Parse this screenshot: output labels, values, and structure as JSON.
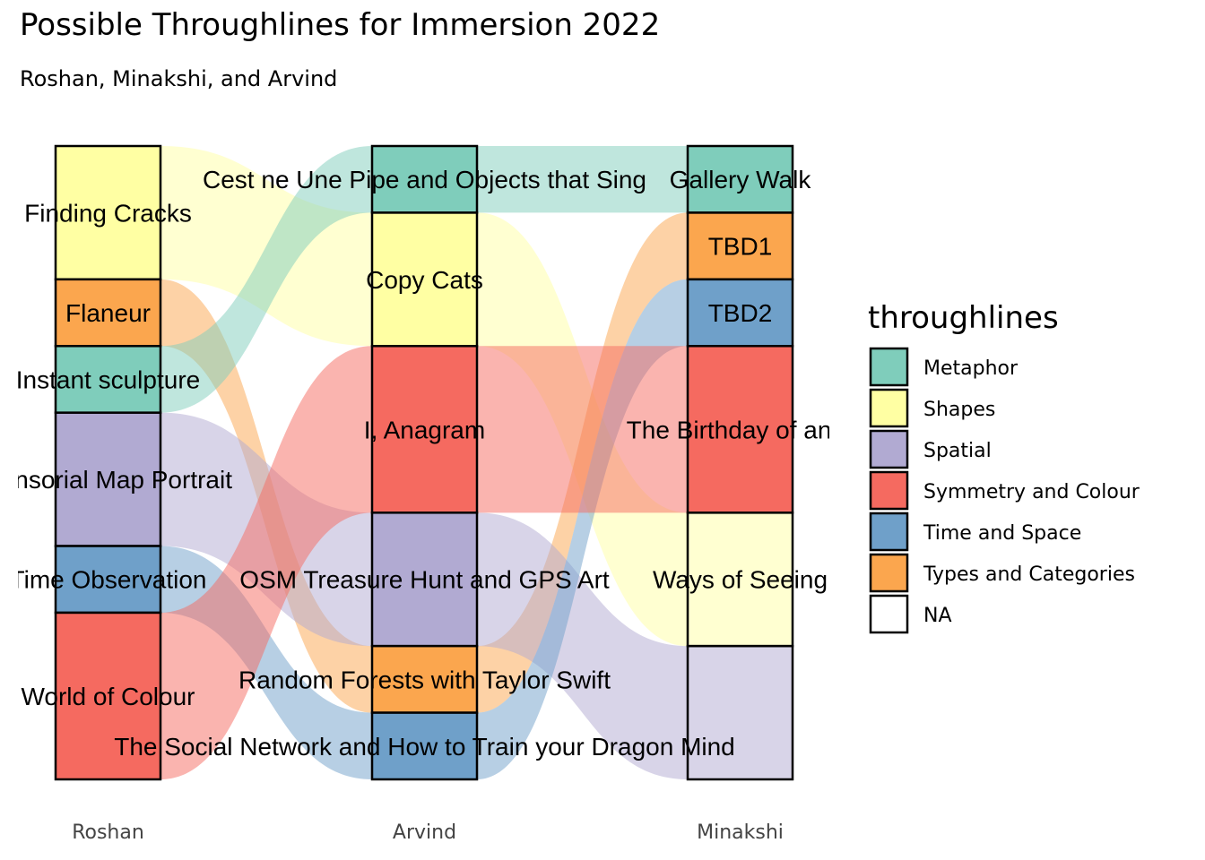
{
  "header": {
    "title": "Possible Throughlines for Immersion 2022",
    "subtitle": "Roshan, Minakshi, and Arvind"
  },
  "colors": {
    "Metaphor": "#7fcdbb",
    "Shapes": "#ffffa3",
    "Spatial": "#b1aad2",
    "Symmetry and Colour": "#f56a60",
    "Time and Space": "#6fa0c9",
    "Types and Categories": "#fba64e",
    "NA": "#ffffff"
  },
  "chart_data": {
    "type": "alluvial",
    "title": "Possible Throughlines for Immersion 2022",
    "subtitle": "Roshan, Minakshi, and Arvind",
    "axes": [
      "Roshan",
      "Arvind",
      "Minakshi"
    ],
    "legend": {
      "title": "throughlines",
      "position": "right",
      "entries": [
        "Metaphor",
        "Shapes",
        "Spatial",
        "Symmetry and Colour",
        "Time and Space",
        "Types and Categories",
        "NA"
      ]
    },
    "stacks": [
      {
        "axis": "Roshan",
        "nodes": [
          {
            "label": "Finding Cracks",
            "category": "Shapes",
            "size": 2
          },
          {
            "label": "Flaneur",
            "category": "Types and Categories",
            "size": 1
          },
          {
            "label": "Instant sculpture",
            "category": "Metaphor",
            "size": 1
          },
          {
            "label": "Sensorial Map Portrait",
            "category": "Spatial",
            "size": 2
          },
          {
            "label": "Time Observation",
            "category": "Time and Space",
            "size": 1
          },
          {
            "label": "World of Colour",
            "category": "Symmetry and Colour",
            "size": 2.5
          }
        ]
      },
      {
        "axis": "Arvind",
        "nodes": [
          {
            "label": "Cest ne Une Pipe and Objects that Sing",
            "category": "Metaphor",
            "size": 1
          },
          {
            "label": "Copy Cats",
            "category": "Shapes",
            "size": 2
          },
          {
            "label": "I, Anagram",
            "category": "Symmetry and Colour",
            "size": 2.5
          },
          {
            "label": "OSM Treasure Hunt and GPS Art",
            "category": "Spatial",
            "size": 2
          },
          {
            "label": "Random Forests with Taylor Swift",
            "category": "Types and Categories",
            "size": 1
          },
          {
            "label": "The Social Network and How to Train your Dragon Mind",
            "category": "Time and Space",
            "size": 1
          }
        ]
      },
      {
        "axis": "Minakshi",
        "nodes": [
          {
            "label": "Gallery Walk",
            "category": "Metaphor",
            "size": 1
          },
          {
            "label": "TBD1",
            "category": "Types and Categories",
            "size": 1
          },
          {
            "label": "TBD2",
            "category": "Time and Space",
            "size": 1
          },
          {
            "label": "The Birthday of an A",
            "category": "Symmetry and Colour",
            "size": 2.5
          },
          {
            "label": "Ways of Seeing",
            "category": "Shapes",
            "size": 2
          },
          {
            "label": "",
            "category": "Spatial",
            "size": 2
          }
        ]
      }
    ],
    "flows": [
      {
        "category": "Shapes",
        "path": [
          "Finding Cracks",
          "Copy Cats",
          "Ways of Seeing"
        ],
        "size": 2
      },
      {
        "category": "Types and Categories",
        "path": [
          "Flaneur",
          "Random Forests with Taylor Swift",
          "TBD1"
        ],
        "size": 1
      },
      {
        "category": "Metaphor",
        "path": [
          "Instant sculpture",
          "Cest ne Une Pipe and Objects that Sing",
          "Gallery Walk"
        ],
        "size": 1
      },
      {
        "category": "Spatial",
        "path": [
          "Sensorial Map Portrait",
          "OSM Treasure Hunt and GPS Art",
          "Spatial"
        ],
        "size": 2
      },
      {
        "category": "Time and Space",
        "path": [
          "Time Observation",
          "The Social Network and How to Train your Dragon Mind",
          "TBD2"
        ],
        "size": 1
      },
      {
        "category": "Symmetry and Colour",
        "path": [
          "World of Colour",
          "I, Anagram",
          "The Birthday of an A"
        ],
        "size": 2.5
      }
    ],
    "grid": false
  }
}
